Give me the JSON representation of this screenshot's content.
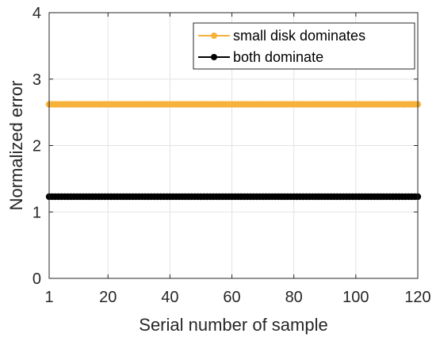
{
  "chart_data": {
    "type": "line",
    "xlabel": "Serial number of sample",
    "ylabel": "Normalized error",
    "xlim": [
      1,
      120
    ],
    "ylim": [
      0,
      4
    ],
    "x_ticks": [
      1,
      20,
      40,
      60,
      80,
      100,
      120
    ],
    "y_ticks": [
      0,
      1,
      2,
      3,
      4
    ],
    "grid": true,
    "legend_placement": "top-right",
    "x": {
      "start": 1,
      "end": 120,
      "step": 1
    },
    "series": [
      {
        "name": "small disk dominates",
        "value": 2.62,
        "color": "#F7B23B",
        "marker": "circle"
      },
      {
        "name": "both dominate",
        "value": 1.23,
        "color": "#000000",
        "marker": "circle"
      }
    ]
  }
}
